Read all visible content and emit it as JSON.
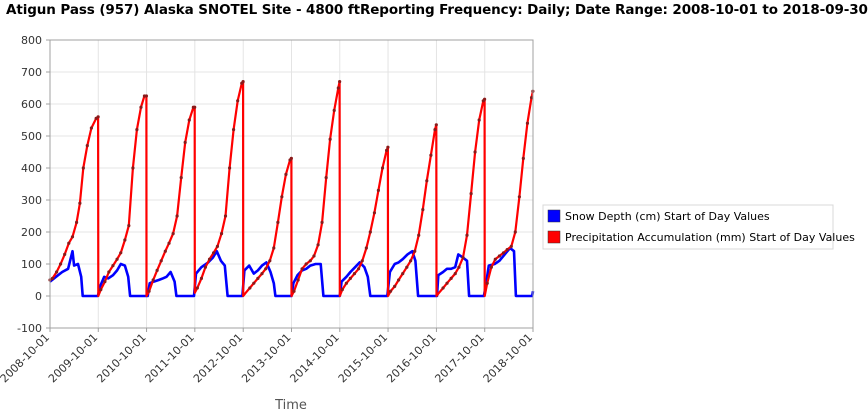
{
  "chart_data": {
    "type": "line",
    "title": "Atigun Pass (957) Alaska  SNOTEL Site - 4800 ftReporting Frequency: Daily; Date Range: 2008-10-01 to 2018-09-30",
    "xlabel": "Time",
    "ylabel": "",
    "ylim": [
      -100,
      800
    ],
    "yticks": [
      -100,
      0,
      100,
      200,
      300,
      400,
      500,
      600,
      700,
      800
    ],
    "xlim": [
      "2008-10-01",
      "2018-10-01"
    ],
    "xticks": [
      "2008-10-01",
      "2009-10-01",
      "2010-10-01",
      "2011-10-01",
      "2012-10-01",
      "2013-10-01",
      "2014-10-01",
      "2015-10-01",
      "2016-10-01",
      "2017-10-01",
      "2018-10-01"
    ],
    "grid": true,
    "legend_position": "right",
    "series": [
      {
        "name": "Snow Depth (cm) Start of Day Values",
        "color": "#0000ff",
        "points": [
          [
            "2008-10-01",
            45
          ],
          [
            "2008-11-15",
            60
          ],
          [
            "2009-01-01",
            75
          ],
          [
            "2009-02-15",
            85
          ],
          [
            "2009-03-20",
            140
          ],
          [
            "2009-04-01",
            95
          ],
          [
            "2009-05-01",
            100
          ],
          [
            "2009-05-25",
            60
          ],
          [
            "2009-06-05",
            0
          ],
          [
            "2009-09-28",
            0
          ],
          [
            "2009-10-15",
            30
          ],
          [
            "2009-11-15",
            60
          ],
          [
            "2009-12-15",
            55
          ],
          [
            "2010-01-20",
            65
          ],
          [
            "2010-02-20",
            80
          ],
          [
            "2010-03-20",
            100
          ],
          [
            "2010-04-20",
            95
          ],
          [
            "2010-05-15",
            60
          ],
          [
            "2010-05-30",
            0
          ],
          [
            "2010-10-10",
            0
          ],
          [
            "2010-10-25",
            40
          ],
          [
            "2010-11-25",
            45
          ],
          [
            "2011-01-01",
            50
          ],
          [
            "2011-02-01",
            55
          ],
          [
            "2011-03-01",
            60
          ],
          [
            "2011-04-01",
            75
          ],
          [
            "2011-05-01",
            45
          ],
          [
            "2011-05-15",
            0
          ],
          [
            "2011-09-25",
            0
          ],
          [
            "2011-10-10",
            70
          ],
          [
            "2011-11-20",
            90
          ],
          [
            "2012-01-10",
            105
          ],
          [
            "2012-02-15",
            120
          ],
          [
            "2012-03-15",
            140
          ],
          [
            "2012-04-15",
            110
          ],
          [
            "2012-05-15",
            95
          ],
          [
            "2012-06-05",
            0
          ],
          [
            "2012-09-25",
            0
          ],
          [
            "2012-10-10",
            80
          ],
          [
            "2012-11-15",
            95
          ],
          [
            "2012-12-20",
            70
          ],
          [
            "2013-01-20",
            80
          ],
          [
            "2013-02-20",
            95
          ],
          [
            "2013-03-25",
            105
          ],
          [
            "2013-04-25",
            75
          ],
          [
            "2013-05-20",
            40
          ],
          [
            "2013-06-01",
            0
          ],
          [
            "2013-10-01",
            0
          ],
          [
            "2013-10-15",
            40
          ],
          [
            "2013-11-15",
            65
          ],
          [
            "2013-12-20",
            80
          ],
          [
            "2014-01-20",
            85
          ],
          [
            "2014-02-20",
            95
          ],
          [
            "2014-04-01",
            100
          ],
          [
            "2014-05-10",
            100
          ],
          [
            "2014-05-30",
            0
          ],
          [
            "2014-10-01",
            0
          ],
          [
            "2014-10-15",
            45
          ],
          [
            "2014-11-20",
            60
          ],
          [
            "2014-12-20",
            75
          ],
          [
            "2015-01-25",
            90
          ],
          [
            "2015-03-01",
            105
          ],
          [
            "2015-04-05",
            90
          ],
          [
            "2015-05-01",
            60
          ],
          [
            "2015-05-20",
            0
          ],
          [
            "2015-09-25",
            0
          ],
          [
            "2015-10-15",
            75
          ],
          [
            "2015-11-20",
            100
          ],
          [
            "2015-12-20",
            105
          ],
          [
            "2016-01-20",
            115
          ],
          [
            "2016-02-25",
            130
          ],
          [
            "2016-04-01",
            140
          ],
          [
            "2016-04-25",
            110
          ],
          [
            "2016-05-15",
            0
          ],
          [
            "2016-10-05",
            0
          ],
          [
            "2016-10-15",
            65
          ],
          [
            "2016-11-20",
            75
          ],
          [
            "2016-12-20",
            85
          ],
          [
            "2017-01-20",
            85
          ],
          [
            "2017-02-20",
            90
          ],
          [
            "2017-03-15",
            130
          ],
          [
            "2017-04-20",
            120
          ],
          [
            "2017-05-20",
            110
          ],
          [
            "2017-06-05",
            0
          ],
          [
            "2017-09-25",
            0
          ],
          [
            "2017-10-10",
            35
          ],
          [
            "2017-11-01",
            95
          ],
          [
            "2017-12-15",
            100
          ],
          [
            "2018-01-20",
            110
          ],
          [
            "2018-03-01",
            130
          ],
          [
            "2018-04-10",
            150
          ],
          [
            "2018-05-10",
            140
          ],
          [
            "2018-05-25",
            0
          ],
          [
            "2018-09-25",
            0
          ],
          [
            "2018-10-01",
            15
          ]
        ]
      },
      {
        "name": "Precipitation Accumulation (mm) Start of Day Values",
        "color": "#ff0000",
        "points": [
          [
            "2008-10-01",
            50
          ],
          [
            "2008-10-20",
            55
          ],
          [
            "2008-11-20",
            75
          ],
          [
            "2008-12-20",
            100
          ],
          [
            "2009-01-20",
            130
          ],
          [
            "2009-02-20",
            165
          ],
          [
            "2009-03-20",
            185
          ],
          [
            "2009-04-20",
            230
          ],
          [
            "2009-05-15",
            290
          ],
          [
            "2009-06-10",
            400
          ],
          [
            "2009-07-10",
            470
          ],
          [
            "2009-08-10",
            525
          ],
          [
            "2009-09-15",
            555
          ],
          [
            "2009-09-30",
            560
          ],
          [
            "2009-10-01",
            0
          ],
          [
            "2009-10-20",
            20
          ],
          [
            "2009-11-20",
            45
          ],
          [
            "2009-12-20",
            75
          ],
          [
            "2010-01-20",
            95
          ],
          [
            "2010-02-20",
            115
          ],
          [
            "2010-03-20",
            135
          ],
          [
            "2010-04-20",
            175
          ],
          [
            "2010-05-20",
            220
          ],
          [
            "2010-06-20",
            400
          ],
          [
            "2010-07-20",
            520
          ],
          [
            "2010-08-20",
            590
          ],
          [
            "2010-09-15",
            625
          ],
          [
            "2010-09-30",
            625
          ],
          [
            "2010-10-01",
            0
          ],
          [
            "2010-10-20",
            15
          ],
          [
            "2010-11-20",
            50
          ],
          [
            "2010-12-20",
            80
          ],
          [
            "2011-01-20",
            110
          ],
          [
            "2011-02-20",
            140
          ],
          [
            "2011-03-20",
            165
          ],
          [
            "2011-04-20",
            195
          ],
          [
            "2011-05-20",
            250
          ],
          [
            "2011-06-20",
            370
          ],
          [
            "2011-07-20",
            480
          ],
          [
            "2011-08-20",
            550
          ],
          [
            "2011-09-20",
            590
          ],
          [
            "2011-09-30",
            590
          ],
          [
            "2011-10-01",
            10
          ],
          [
            "2011-10-20",
            25
          ],
          [
            "2011-11-20",
            55
          ],
          [
            "2011-12-20",
            90
          ],
          [
            "2012-01-20",
            115
          ],
          [
            "2012-02-20",
            135
          ],
          [
            "2012-03-20",
            155
          ],
          [
            "2012-04-20",
            195
          ],
          [
            "2012-05-20",
            250
          ],
          [
            "2012-06-20",
            400
          ],
          [
            "2012-07-20",
            520
          ],
          [
            "2012-08-20",
            610
          ],
          [
            "2012-09-20",
            665
          ],
          [
            "2012-09-30",
            670
          ],
          [
            "2012-10-01",
            0
          ],
          [
            "2012-10-20",
            10
          ],
          [
            "2012-11-20",
            25
          ],
          [
            "2012-12-20",
            40
          ],
          [
            "2013-01-20",
            55
          ],
          [
            "2013-02-20",
            70
          ],
          [
            "2013-03-20",
            85
          ],
          [
            "2013-04-20",
            110
          ],
          [
            "2013-05-20",
            150
          ],
          [
            "2013-06-20",
            230
          ],
          [
            "2013-07-20",
            310
          ],
          [
            "2013-08-20",
            380
          ],
          [
            "2013-09-20",
            425
          ],
          [
            "2013-09-30",
            430
          ],
          [
            "2013-10-01",
            0
          ],
          [
            "2013-10-20",
            15
          ],
          [
            "2013-11-20",
            50
          ],
          [
            "2013-12-20",
            85
          ],
          [
            "2014-01-20",
            100
          ],
          [
            "2014-02-20",
            110
          ],
          [
            "2014-03-20",
            125
          ],
          [
            "2014-04-20",
            160
          ],
          [
            "2014-05-20",
            230
          ],
          [
            "2014-06-20",
            370
          ],
          [
            "2014-07-20",
            490
          ],
          [
            "2014-08-20",
            580
          ],
          [
            "2014-09-20",
            650
          ],
          [
            "2014-09-30",
            670
          ],
          [
            "2014-10-01",
            0
          ],
          [
            "2014-10-20",
            20
          ],
          [
            "2014-11-20",
            40
          ],
          [
            "2014-12-20",
            55
          ],
          [
            "2015-01-20",
            70
          ],
          [
            "2015-02-20",
            85
          ],
          [
            "2015-03-20",
            110
          ],
          [
            "2015-04-20",
            150
          ],
          [
            "2015-05-20",
            200
          ],
          [
            "2015-06-20",
            260
          ],
          [
            "2015-07-20",
            330
          ],
          [
            "2015-08-20",
            400
          ],
          [
            "2015-09-20",
            455
          ],
          [
            "2015-09-30",
            465
          ],
          [
            "2015-10-01",
            0
          ],
          [
            "2015-10-20",
            15
          ],
          [
            "2015-11-20",
            30
          ],
          [
            "2015-12-20",
            50
          ],
          [
            "2016-01-20",
            70
          ],
          [
            "2016-02-20",
            90
          ],
          [
            "2016-03-20",
            110
          ],
          [
            "2016-04-20",
            140
          ],
          [
            "2016-05-20",
            190
          ],
          [
            "2016-06-20",
            270
          ],
          [
            "2016-07-20",
            360
          ],
          [
            "2016-08-20",
            440
          ],
          [
            "2016-09-20",
            520
          ],
          [
            "2016-09-30",
            535
          ],
          [
            "2016-10-01",
            0
          ],
          [
            "2016-10-20",
            10
          ],
          [
            "2016-11-20",
            25
          ],
          [
            "2016-12-20",
            40
          ],
          [
            "2017-01-20",
            55
          ],
          [
            "2017-02-20",
            70
          ],
          [
            "2017-03-20",
            90
          ],
          [
            "2017-04-20",
            120
          ],
          [
            "2017-05-20",
            190
          ],
          [
            "2017-06-20",
            320
          ],
          [
            "2017-07-20",
            450
          ],
          [
            "2017-08-20",
            550
          ],
          [
            "2017-09-20",
            610
          ],
          [
            "2017-09-30",
            615
          ],
          [
            "2017-10-01",
            0
          ],
          [
            "2017-10-20",
            40
          ],
          [
            "2017-11-20",
            90
          ],
          [
            "2017-12-20",
            115
          ],
          [
            "2018-01-20",
            125
          ],
          [
            "2018-02-20",
            135
          ],
          [
            "2018-03-20",
            145
          ],
          [
            "2018-04-20",
            155
          ],
          [
            "2018-05-20",
            200
          ],
          [
            "2018-06-20",
            310
          ],
          [
            "2018-07-20",
            430
          ],
          [
            "2018-08-20",
            540
          ],
          [
            "2018-09-20",
            620
          ],
          [
            "2018-09-30",
            640
          ]
        ]
      }
    ]
  }
}
